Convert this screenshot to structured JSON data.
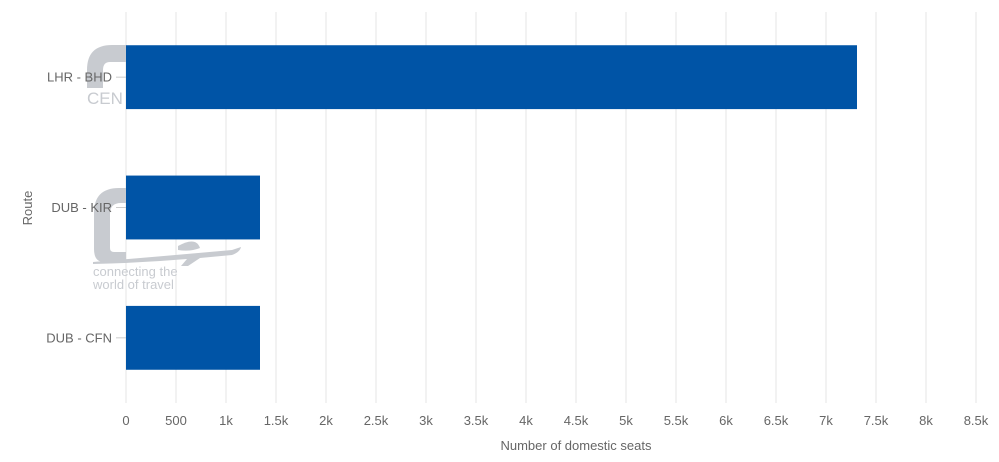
{
  "chart_data": {
    "type": "bar",
    "orientation": "horizontal",
    "categories": [
      "LHR - BHD",
      "DUB - KIR",
      "DUB - CFN"
    ],
    "values": [
      7310,
      1340,
      1340
    ],
    "title": "",
    "xlabel": "Number of domestic seats",
    "ylabel": "Route",
    "xlim": [
      0,
      8500
    ],
    "x_ticks": [
      0,
      500,
      1000,
      1500,
      2000,
      2500,
      3000,
      3500,
      4000,
      4500,
      5000,
      5500,
      6000,
      6500,
      7000,
      7500,
      8000,
      8500
    ],
    "x_tick_labels": [
      "0",
      "500",
      "1k",
      "1.5k",
      "2k",
      "2.5k",
      "3k",
      "3.5k",
      "4k",
      "4.5k",
      "5k",
      "5.5k",
      "6k",
      "6.5k",
      "7k",
      "7.5k",
      "8k",
      "8.5k"
    ],
    "grid": true,
    "legend": "none",
    "bar_color": "#0054a6",
    "grid_color": "#e6e6e6"
  },
  "watermark": {
    "logo": "OAG",
    "tagline_line1": "connecting the",
    "tagline_line2": "world of travel",
    "color": "#c8cbd0"
  }
}
